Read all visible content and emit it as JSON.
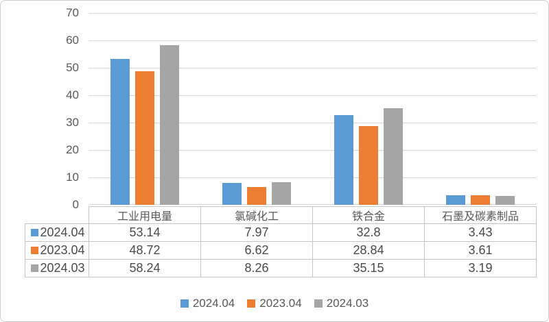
{
  "chart_data": {
    "type": "bar",
    "title": "",
    "categories": [
      "工业用电量",
      "氯碱化工",
      "铁合金",
      "石墨及碳素制品"
    ],
    "series": [
      {
        "name": "2024.04",
        "color": "#5B9BD5",
        "values": [
          53.14,
          7.97,
          32.8,
          3.43
        ]
      },
      {
        "name": "2023.04",
        "color": "#ED7D31",
        "values": [
          48.72,
          6.62,
          28.84,
          3.61
        ]
      },
      {
        "name": "2024.03",
        "color": "#A5A5A5",
        "values": [
          58.24,
          8.26,
          35.15,
          3.19
        ]
      }
    ],
    "xlabel": "",
    "ylabel": "",
    "ylim": [
      0,
      70
    ],
    "yticks": [
      0,
      10,
      20,
      30,
      40,
      50,
      60,
      70
    ],
    "grid": true,
    "legend_position": "bottom",
    "data_table_shown": true
  },
  "colors": {
    "gridline": "#d9d9d9",
    "table_border": "#c4c4c4",
    "axis_text": "#595959",
    "background": "#fefefe"
  }
}
